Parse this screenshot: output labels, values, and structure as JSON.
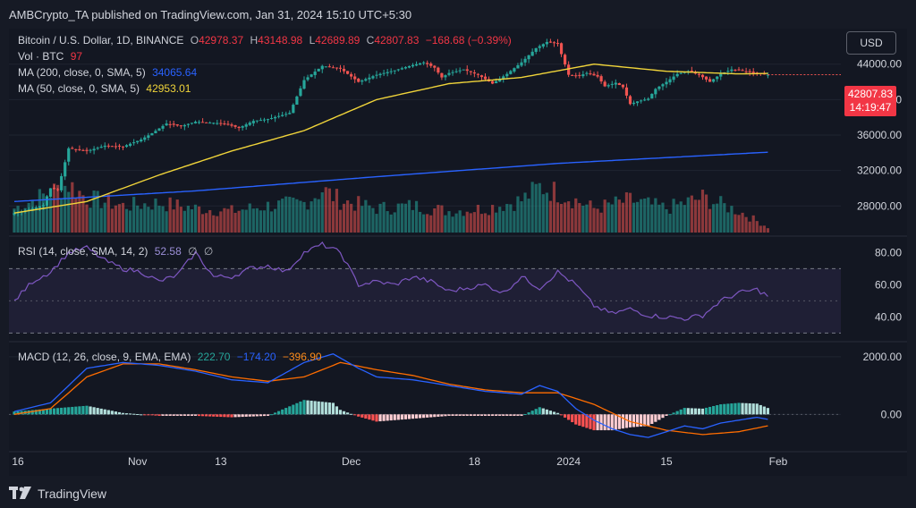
{
  "header": {
    "published_text": "AMBCrypto_TA published on TradingView.com, Jan 31, 2024 15:10 UTC+5:30"
  },
  "legend": {
    "symbol": "Bitcoin / U.S. Dollar, 1D, BINANCE",
    "o_label": "O",
    "o_value": "42978.37",
    "h_label": "H",
    "h_value": "43148.98",
    "l_label": "L",
    "l_value": "42689.89",
    "c_label": "C",
    "c_value": "42807.83",
    "change": "−168.68 (−0.39%)",
    "vol_label": "Vol · BTC",
    "vol_value": "97",
    "ma200_label": "MA (200, close, 0, SMA, 5)",
    "ma200_value": "34065.64",
    "ma50_label": "MA (50, close, 0, SMA, 5)",
    "ma50_value": "42953.01",
    "rsi_label": "RSI (14, close, SMA, 14, 2)",
    "rsi_value": "52.58",
    "rsi_extra1": "∅",
    "rsi_extra2": "∅",
    "macd_label": "MACD (12, 26, close, 9, EMA, EMA)",
    "macd_hist": "222.70",
    "macd_line": "−174.20",
    "macd_signal": "−396.90"
  },
  "toolbar": {
    "currency": "USD"
  },
  "price_tag": {
    "price": "42807.83",
    "countdown": "14:19:47"
  },
  "footer": {
    "brand": "TradingView"
  },
  "colors": {
    "bg": "#131722",
    "up": "#26a69a",
    "down": "#ef5350",
    "ma50": "#f0d43a",
    "ma200": "#2962ff",
    "rsi": "#7e57c2",
    "macd": "#2962ff",
    "signal": "#ff6d00",
    "grid": "#1f2430"
  },
  "chart_data": [
    {
      "type": "candlestick",
      "title": "Bitcoin / U.S. Dollar, 1D, BINANCE",
      "x_ticks": [
        "16",
        "Nov",
        "13",
        "Dec",
        "18",
        "2024",
        "15",
        "Feb"
      ],
      "y_ticks": [
        "28000.00",
        "32000.00",
        "36000.00",
        "40000.00",
        "44000.00"
      ],
      "ylim": [
        25000,
        47000
      ],
      "close_anchor_days": [
        0,
        5,
        8,
        10,
        12,
        15,
        20,
        25,
        30,
        35,
        38,
        42,
        46,
        50,
        54,
        58,
        62,
        66,
        70,
        76,
        80,
        85,
        90,
        95,
        100,
        105,
        110,
        113,
        116,
        118,
        120,
        124,
        128,
        132,
        136,
        140,
        144,
        147,
        150,
        153,
        156,
        158,
        161,
        163,
        166,
        168,
        170,
        172,
        175,
        177,
        180,
        183,
        186,
        189,
        192,
        195,
        198,
        200,
        203,
        205,
        208
      ],
      "close_anchor_values": [
        27200,
        27700,
        28100,
        30000,
        29800,
        34500,
        34200,
        34800,
        34700,
        35500,
        36200,
        37300,
        37000,
        37500,
        37400,
        37300,
        36800,
        37600,
        37800,
        38500,
        42200,
        43800,
        43500,
        42000,
        42800,
        43300,
        43900,
        44200,
        43600,
        42500,
        43000,
        43400,
        42800,
        41800,
        42900,
        44200,
        45800,
        46500,
        46300,
        42800,
        42700,
        43000,
        42600,
        41500,
        41900,
        41400,
        39500,
        39800,
        40100,
        41200,
        42000,
        42900,
        43200,
        42800,
        42000,
        42900,
        43400,
        43300,
        43100,
        42900,
        42808
      ],
      "volume_anchor_days": [
        0,
        5,
        10,
        15,
        20,
        30,
        40,
        50,
        60,
        70,
        80,
        85,
        90,
        100,
        110,
        120,
        130,
        140,
        145,
        150,
        160,
        170,
        180,
        190,
        200,
        208
      ],
      "volume_anchor_values": [
        0.45,
        0.6,
        0.75,
        0.9,
        0.65,
        0.5,
        0.55,
        0.45,
        0.4,
        0.5,
        0.55,
        0.8,
        0.6,
        0.45,
        0.5,
        0.4,
        0.45,
        0.6,
        0.85,
        0.75,
        0.45,
        0.6,
        0.45,
        0.65,
        0.4,
        0.1
      ],
      "ma50_anchor_days": [
        0,
        20,
        40,
        60,
        80,
        100,
        120,
        140,
        160,
        180,
        200,
        208
      ],
      "ma50_anchor_values": [
        27200,
        28500,
        31500,
        34200,
        36500,
        40000,
        41800,
        42500,
        44000,
        43200,
        42900,
        42953
      ],
      "ma200_anchor_days": [
        0,
        50,
        100,
        150,
        208
      ],
      "ma200_anchor_values": [
        28500,
        29700,
        31300,
        32800,
        34066
      ]
    },
    {
      "type": "line",
      "title": "RSI (14, close, SMA, 14, 2)",
      "y_ticks": [
        "40.00",
        "60.00",
        "80.00"
      ],
      "ylim": [
        28,
        88
      ],
      "band": [
        30,
        70
      ],
      "anchor_days": [
        0,
        5,
        10,
        15,
        20,
        25,
        30,
        35,
        40,
        45,
        50,
        55,
        60,
        65,
        70,
        75,
        80,
        85,
        90,
        95,
        100,
        105,
        110,
        115,
        120,
        125,
        130,
        135,
        140,
        145,
        150,
        155,
        160,
        165,
        170,
        175,
        180,
        185,
        190,
        195,
        200,
        205,
        208
      ],
      "anchor_values": [
        50,
        62,
        68,
        80,
        83,
        75,
        70,
        68,
        62,
        66,
        80,
        65,
        65,
        70,
        72,
        68,
        80,
        85,
        80,
        60,
        62,
        60,
        65,
        62,
        56,
        58,
        60,
        55,
        65,
        58,
        68,
        60,
        47,
        42,
        45,
        41,
        40,
        39,
        41,
        50,
        55,
        57,
        53
      ]
    },
    {
      "type": "macd",
      "title": "MACD (12, 26, close, 9, EMA, EMA)",
      "y_ticks": [
        "0.00",
        "2000.00"
      ],
      "ylim": [
        -1200,
        2400
      ],
      "macd_anchor_days": [
        0,
        10,
        20,
        30,
        40,
        50,
        60,
        70,
        80,
        88,
        95,
        100,
        110,
        120,
        130,
        140,
        145,
        150,
        155,
        160,
        165,
        170,
        175,
        180,
        185,
        190,
        195,
        200,
        205,
        208
      ],
      "macd_anchor_values": [
        100,
        400,
        1600,
        1800,
        1700,
        1500,
        1200,
        1100,
        1800,
        2100,
        1600,
        1300,
        1200,
        1000,
        800,
        700,
        1000,
        800,
        200,
        -200,
        -500,
        -700,
        -800,
        -600,
        -400,
        -500,
        -300,
        -200,
        -100,
        -174
      ],
      "signal_anchor_days": [
        0,
        10,
        20,
        30,
        40,
        50,
        60,
        70,
        80,
        90,
        100,
        110,
        120,
        130,
        140,
        150,
        160,
        170,
        180,
        190,
        200,
        208
      ],
      "signal_anchor_values": [
        0,
        200,
        1300,
        1750,
        1750,
        1550,
        1300,
        1150,
        1300,
        1800,
        1550,
        1350,
        1050,
        850,
        750,
        750,
        350,
        -250,
        -550,
        -700,
        -600,
        -397
      ]
    }
  ]
}
